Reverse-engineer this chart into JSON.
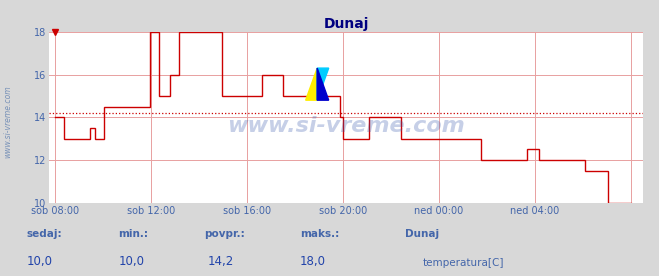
{
  "title": "Dunaj",
  "plot_bg_color": "#ffffff",
  "outer_bg_color": "#d8d8d8",
  "line_color": "#cc0000",
  "grid_color": "#e8a0a0",
  "dashed_line_color": "#cc0000",
  "dashed_line_y": 14.2,
  "ylim": [
    10,
    18
  ],
  "yticks": [
    10,
    12,
    14,
    16,
    18
  ],
  "xtick_labels": [
    "sob 08:00",
    "sob 12:00",
    "sob 16:00",
    "sob 20:00",
    "ned 00:00",
    "ned 04:00"
  ],
  "xtick_positions": [
    0.0,
    0.1667,
    0.3333,
    0.5,
    0.6667,
    0.8333
  ],
  "xlabel_color": "#4466aa",
  "ylabel_color": "#4466aa",
  "title_color": "#000080",
  "watermark": "www.si-vreme.com",
  "footer_label_color": "#4466aa",
  "footer_value_color": "#2244aa",
  "sedaj": "10,0",
  "min_val": "10,0",
  "povpr": "14,2",
  "maks": "18,0",
  "station": "Dunaj",
  "legend_label": "temperatura[C]",
  "legend_color": "#cc0000",
  "x_data": [
    0.0,
    0.015,
    0.015,
    0.06,
    0.06,
    0.07,
    0.07,
    0.085,
    0.085,
    0.165,
    0.165,
    0.18,
    0.18,
    0.2,
    0.2,
    0.215,
    0.215,
    0.29,
    0.29,
    0.36,
    0.36,
    0.395,
    0.395,
    0.495,
    0.495,
    0.5,
    0.5,
    0.545,
    0.545,
    0.6,
    0.6,
    0.66,
    0.66,
    0.72,
    0.72,
    0.74,
    0.74,
    0.82,
    0.82,
    0.84,
    0.84,
    0.87,
    0.87,
    0.92,
    0.92,
    0.96,
    0.96,
    1.0
  ],
  "y_data": [
    14.0,
    14.0,
    13.0,
    13.0,
    13.5,
    13.5,
    13.0,
    13.0,
    14.5,
    14.5,
    18.0,
    18.0,
    15.0,
    15.0,
    16.0,
    16.0,
    18.0,
    18.0,
    15.0,
    15.0,
    16.0,
    16.0,
    15.0,
    15.0,
    14.0,
    14.0,
    13.0,
    13.0,
    14.0,
    14.0,
    13.0,
    13.0,
    13.0,
    13.0,
    13.0,
    13.0,
    12.0,
    12.0,
    12.5,
    12.5,
    12.0,
    12.0,
    12.0,
    12.0,
    11.5,
    11.5,
    10.0,
    10.0
  ]
}
